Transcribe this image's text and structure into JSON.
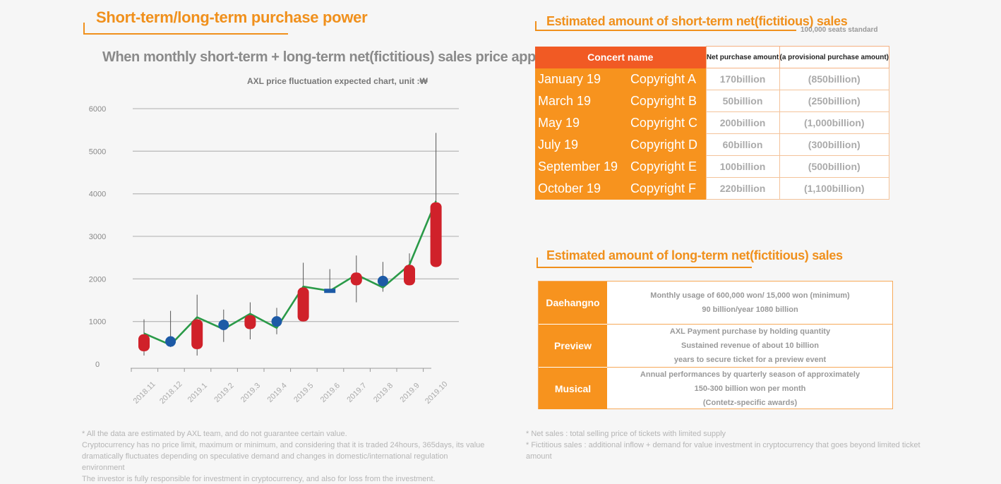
{
  "left": {
    "title": "Short-term/long-term purchase power",
    "subtitle": "When monthly short-term + long-term net(fictitious) sales price applied",
    "caption": "AXL price fluctuation expected chart, unit :₩"
  },
  "chart_data": {
    "type": "candlestick",
    "categories": [
      "2018.11",
      "2018.12",
      "2019.1",
      "2019.2",
      "2019.3",
      "2019.4",
      "2019.5",
      "2019.6",
      "2019.7",
      "2019.8",
      "2019.9",
      "2019.10"
    ],
    "y_ticks": [
      0,
      1000,
      2000,
      3000,
      4000,
      5000,
      6000
    ],
    "ylim": [
      0,
      6000
    ],
    "grid": true,
    "candles": [
      {
        "open": 300,
        "close": 700,
        "low": 200,
        "high": 1050,
        "color": "#d0212a",
        "shape": "bar"
      },
      {
        "open": 530,
        "close": 530,
        "low": 400,
        "high": 1250,
        "color": "#1d5aa6",
        "shape": "dot"
      },
      {
        "open": 350,
        "close": 1050,
        "low": 200,
        "high": 1630,
        "color": "#d0212a",
        "shape": "bar"
      },
      {
        "open": 920,
        "close": 920,
        "low": 520,
        "high": 1280,
        "color": "#1d5aa6",
        "shape": "dot"
      },
      {
        "open": 820,
        "close": 1150,
        "low": 580,
        "high": 1450,
        "color": "#d0212a",
        "shape": "bar"
      },
      {
        "open": 1000,
        "close": 1000,
        "low": 700,
        "high": 1320,
        "color": "#1d5aa6",
        "shape": "dot"
      },
      {
        "open": 1000,
        "close": 1800,
        "low": 1000,
        "high": 2380,
        "color": "#d0212a",
        "shape": "bar"
      },
      {
        "open": 1720,
        "close": 1720,
        "low": 1720,
        "high": 2230,
        "color": "#1d5aa6",
        "shape": "flat"
      },
      {
        "open": 1850,
        "close": 2150,
        "low": 1450,
        "high": 2550,
        "color": "#d0212a",
        "shape": "bar"
      },
      {
        "open": 1950,
        "close": 1950,
        "low": 1700,
        "high": 2400,
        "color": "#1d5aa6",
        "shape": "dot"
      },
      {
        "open": 1850,
        "close": 2330,
        "low": 1850,
        "high": 2600,
        "color": "#d0212a",
        "shape": "bar"
      },
      {
        "open": 2280,
        "close": 3800,
        "low": 2280,
        "high": 5430,
        "color": "#d0212a",
        "shape": "bar"
      }
    ],
    "line": [
      720,
      450,
      1100,
      820,
      1180,
      850,
      1820,
      1720,
      2100,
      1800,
      2330,
      3830
    ],
    "line_color": "#2a9a48"
  },
  "right": {
    "short_title": "Estimated amount of short-term net(fictitious) sales",
    "seats_note": "100,000 seats standard",
    "table_headers": {
      "concert": "Concert name",
      "net": "Net purchase amount",
      "provisional": "(a provisional purchase amount)"
    },
    "rows": [
      {
        "month": "January 19",
        "copyright": "Copyright A",
        "net": "170billion",
        "provisional": "(850billion)"
      },
      {
        "month": "March 19",
        "copyright": "Copyright B",
        "net": "50billion",
        "provisional": "(250billion)"
      },
      {
        "month": "May 19",
        "copyright": "Copyright C",
        "net": "200billion",
        "provisional": "(1,000billion)"
      },
      {
        "month": "July 19",
        "copyright": "Copyright D",
        "net": "60billion",
        "provisional": "(300billion)"
      },
      {
        "month": "September 19",
        "copyright": "Copyright E",
        "net": "100billion",
        "provisional": "(500billion)"
      },
      {
        "month": "October 19",
        "copyright": "Copyright F",
        "net": "220billion",
        "provisional": "(1,100billion)"
      }
    ],
    "long_title": "Estimated amount of long-term net(fictitious) sales",
    "long_rows": [
      {
        "label": "Daehangno",
        "lines": [
          "Monthly usage of 600,000 won/ 15,000 won (minimum)",
          "90 billion/year 1080 billion"
        ]
      },
      {
        "label": "Preview",
        "lines": [
          "AXL Payment purchase by holding quantity",
          "Sustained revenue of about 10 billion",
          "years to secure ticket for a preview event"
        ]
      },
      {
        "label": "Musical",
        "lines": [
          "Annual performances by quarterly season of approximately",
          "150-300 billion won per month",
          "(Contetz-specific awards)"
        ]
      }
    ]
  },
  "footnotes": {
    "left": [
      "* All the data are estimated by AXL team, and do not guarantee certain value.",
      "Cryptocurrency has no price limit, maximum or minimum, and considering that it is traded 24hours, 365days, its value dramatically fluctuates depending on speculative demand and changes in domestic/international regulation environment",
      "The investor is fully responsible for investment in cryptocurrency, and also for loss from the investment."
    ],
    "right": [
      "* Net sales : total selling price of tickets with limited supply",
      "* Fictitious sales : additional inflow + demand for value investment in cryptocurrency that goes beyond limited ticket amount"
    ]
  }
}
